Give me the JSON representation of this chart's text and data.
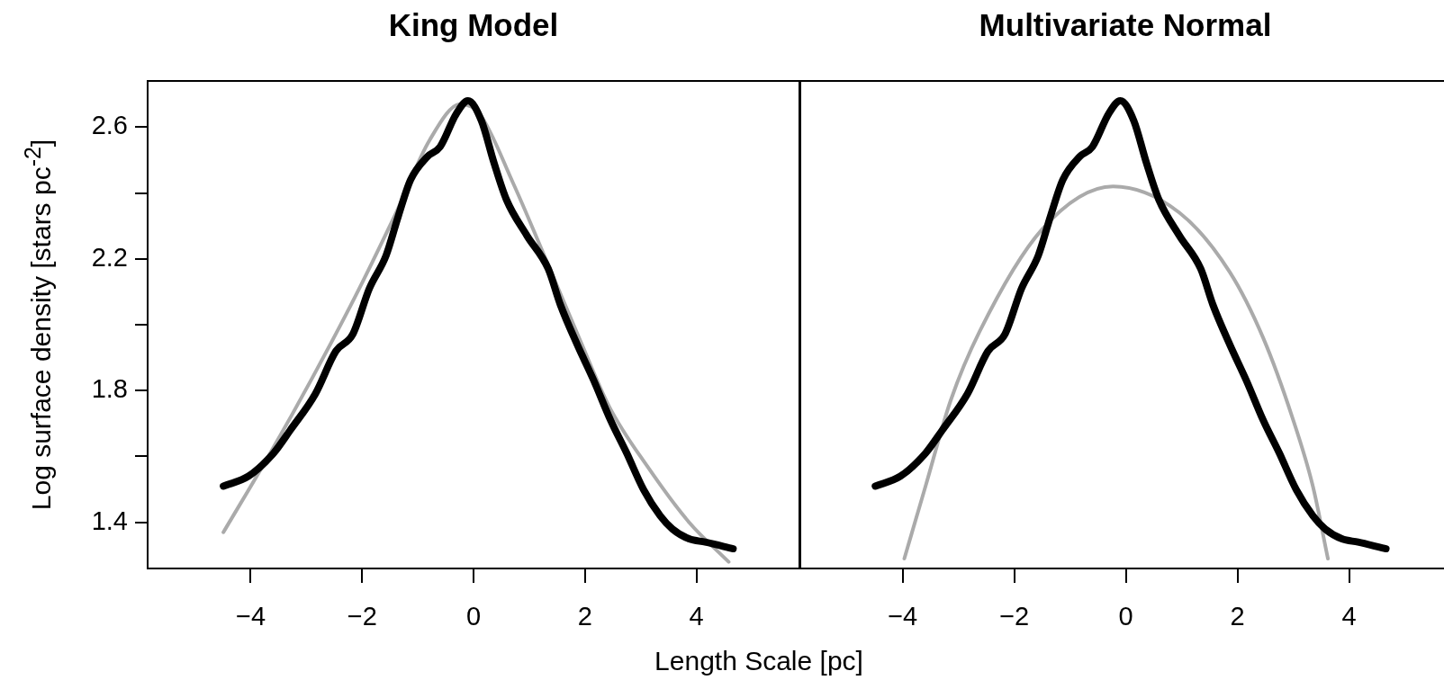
{
  "chart_data": [
    {
      "type": "line",
      "title": "King Model",
      "xlabel": "Length Scale [pc]",
      "ylabel": "Log surface density [stars  pc$^{-2}$]",
      "xlim": [
        -5.85,
        5.85
      ],
      "xticks": [
        {
          "value": -4,
          "label": "−4"
        },
        {
          "value": -2,
          "label": "−2"
        },
        0,
        2,
        {
          "value": 4,
          "label": "4"
        }
      ],
      "ylim": [
        1.26,
        2.74
      ],
      "yticks": [
        1.4,
        {
          "value": 1.6,
          "label": null
        },
        1.8,
        {
          "value": 2.0,
          "label": null
        },
        2.2,
        {
          "value": 2.4,
          "label": null
        },
        2.6
      ],
      "grid": false,
      "legend": false,
      "marker": "none",
      "line_style": "solid",
      "series": [
        {
          "color": "#000000",
          "x": [
            -4.49,
            -4.04,
            -3.59,
            -3.29,
            -2.84,
            -2.47,
            -2.17,
            -1.87,
            -1.57,
            -1.35,
            -1.13,
            -0.83,
            -0.6,
            -0.31,
            -0.1,
            0.14,
            0.37,
            0.59,
            0.96,
            1.34,
            1.56,
            1.86,
            2.16,
            2.46,
            2.75,
            3.05,
            3.35,
            3.57,
            3.87,
            4.16,
            4.66
          ],
          "values": [
            1.51,
            1.54,
            1.61,
            1.68,
            1.79,
            1.92,
            1.97,
            2.11,
            2.21,
            2.33,
            2.44,
            2.51,
            2.54,
            2.64,
            2.68,
            2.62,
            2.49,
            2.38,
            2.27,
            2.17,
            2.06,
            1.94,
            1.83,
            1.71,
            1.61,
            1.5,
            1.42,
            1.38,
            1.35,
            1.34,
            1.32
          ]
        },
        {
          "color": "#aaaaaa",
          "x": [
            -4.49,
            -3.65,
            -2.89,
            -2.14,
            -1.39,
            -0.79,
            -0.23,
            0.11,
            0.71,
            1.32,
            1.92,
            2.44,
            3.12,
            3.87,
            4.58
          ],
          "values": [
            1.37,
            1.61,
            1.84,
            2.08,
            2.34,
            2.56,
            2.67,
            2.64,
            2.43,
            2.19,
            1.95,
            1.75,
            1.57,
            1.4,
            1.28
          ]
        }
      ]
    },
    {
      "type": "line",
      "title": "Multivariate Normal",
      "xlim": [
        -5.85,
        5.7
      ],
      "xticks": [
        {
          "value": -4,
          "label": "−4"
        },
        {
          "value": -2,
          "label": "−2"
        },
        0,
        2,
        4
      ],
      "ylim": [
        1.26,
        2.74
      ],
      "tick_labels": "x",
      "grid": false,
      "legend": false,
      "marker": "none",
      "line_style": "solid",
      "series": [
        {
          "color": "#000000",
          "x": [
            -4.49,
            -4.04,
            -3.59,
            -3.29,
            -2.84,
            -2.47,
            -2.17,
            -1.87,
            -1.57,
            -1.35,
            -1.13,
            -0.83,
            -0.6,
            -0.31,
            -0.1,
            0.14,
            0.37,
            0.59,
            0.96,
            1.34,
            1.56,
            1.86,
            2.16,
            2.46,
            2.75,
            3.05,
            3.35,
            3.57,
            3.87,
            4.16,
            4.66
          ],
          "values": [
            1.51,
            1.54,
            1.61,
            1.68,
            1.79,
            1.92,
            1.97,
            2.11,
            2.21,
            2.33,
            2.44,
            2.51,
            2.54,
            2.64,
            2.68,
            2.62,
            2.49,
            2.38,
            2.27,
            2.17,
            2.06,
            1.94,
            1.83,
            1.71,
            1.61,
            1.5,
            1.42,
            1.38,
            1.35,
            1.34,
            1.32
          ]
        },
        {
          "color": "#aaaaaa",
          "x": [
            -3.97,
            -3.59,
            -3.14,
            -2.62,
            -1.5,
            -0.23,
            0.96,
            1.86,
            2.46,
            2.98,
            3.35,
            3.62
          ],
          "values": [
            1.29,
            1.51,
            1.77,
            1.98,
            2.29,
            2.42,
            2.34,
            2.16,
            1.96,
            1.72,
            1.51,
            1.29
          ]
        }
      ]
    }
  ]
}
